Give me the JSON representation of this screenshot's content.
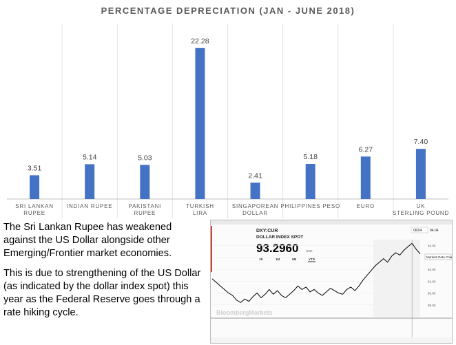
{
  "chart_data": {
    "type": "bar",
    "title": "PERCENTAGE DEPRECIATION (JAN - JUNE 2018)",
    "categories": [
      [
        "SRI LANKAN",
        "RUPEE"
      ],
      [
        "INDIAN RUPEE"
      ],
      [
        "PAKISTANI",
        "RUPEE"
      ],
      [
        "TURKISH",
        "LIRA"
      ],
      [
        "SINGAPOREAN",
        "DOLLAR"
      ],
      [
        "PHILIPPINES PESO"
      ],
      [
        "EURO"
      ],
      [
        "UK",
        "STERLING POUND"
      ]
    ],
    "values": [
      3.51,
      5.14,
      5.03,
      22.28,
      2.41,
      5.18,
      6.27,
      7.4
    ],
    "value_labels": [
      "3.51",
      "5.14",
      "5.03",
      "22.28",
      "2.41",
      "5.18",
      "6.27",
      "7.40"
    ],
    "ylim": [
      0,
      25
    ],
    "bar_color": "#4472c4",
    "grid": false,
    "legend": "none"
  },
  "notes": {
    "paragraph_1": [
      "The Sri Lankan Rupee has weakened",
      "against the US Dollar alongside other",
      "Emerging/Frontier market economies."
    ],
    "paragraph_2": [
      "This is due to strengthening of the US Dollar",
      "(as indicated by the dollar index spot) this",
      "year as the Federal Reserve goes through a",
      "rate hiking cycle."
    ]
  },
  "bloomberg_inset": {
    "ticker": "DXY:CUR",
    "name": "DOLLAR INDEX SPOT",
    "price": "93.2960",
    "currency": "USD",
    "periods": [
      "1D",
      "1M",
      "6M",
      "YTD"
    ],
    "active_period": "YTD",
    "date_label": "06/04",
    "last_value": "94.04",
    "tooltip": "Markets Data Chart",
    "watermark": "BloombergMarkets",
    "y_ticks": [
      "94.00",
      "93.00",
      "92.00",
      "91.00",
      "90.00",
      "89.00"
    ],
    "y_range": [
      88,
      94.5
    ],
    "line_color": "#000000",
    "accent_color": "#e8382b",
    "series": [
      91.2,
      90.9,
      90.6,
      90.3,
      90.0,
      89.8,
      89.4,
      89.2,
      89.5,
      89.3,
      89.7,
      90.0,
      89.6,
      89.9,
      90.3,
      89.9,
      90.2,
      89.8,
      89.6,
      89.9,
      90.2,
      90.6,
      90.3,
      90.5,
      90.1,
      90.3,
      90.0,
      89.8,
      90.1,
      90.4,
      90.2,
      90.0,
      89.9,
      90.3,
      90.5,
      90.2,
      90.6,
      91.1,
      91.5,
      91.9,
      92.3,
      92.6,
      92.9,
      92.6,
      93.1,
      93.4,
      93.2,
      93.6,
      93.9,
      94.2,
      93.7,
      93.3
    ]
  }
}
